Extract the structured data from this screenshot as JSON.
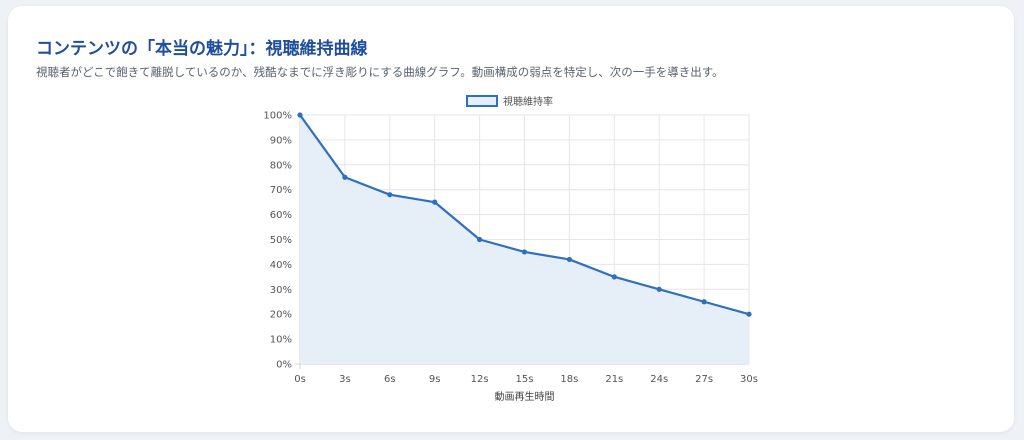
{
  "header": {
    "title": "コンテンツの「本当の魅力」：視聴維持曲線",
    "subtitle": "視聴者がどこで飽きて離脱しているのか、残酷なまでに浮き彫りにする曲線グラフ。動画構成の弱点を特定し、次の一手を導き出す。"
  },
  "colors": {
    "line": "#2f6fc0",
    "fill": "#e6eef8",
    "grid": "#e3e6ea",
    "title": "#1f4e9c"
  },
  "chart_data": {
    "type": "area",
    "title": "",
    "xlabel": "動画再生時間",
    "ylabel": "",
    "categories": [
      "0s",
      "3s",
      "6s",
      "9s",
      "12s",
      "15s",
      "18s",
      "21s",
      "24s",
      "27s",
      "30s"
    ],
    "series": [
      {
        "name": "視聴維持率",
        "values": [
          100,
          75,
          68,
          65,
          50,
          45,
          42,
          35,
          30,
          25,
          20
        ]
      }
    ],
    "ylim": [
      0,
      100
    ],
    "yticks": [
      "0%",
      "10%",
      "20%",
      "30%",
      "40%",
      "50%",
      "60%",
      "70%",
      "80%",
      "90%",
      "100%"
    ],
    "grid": true,
    "legend_position": "top"
  }
}
